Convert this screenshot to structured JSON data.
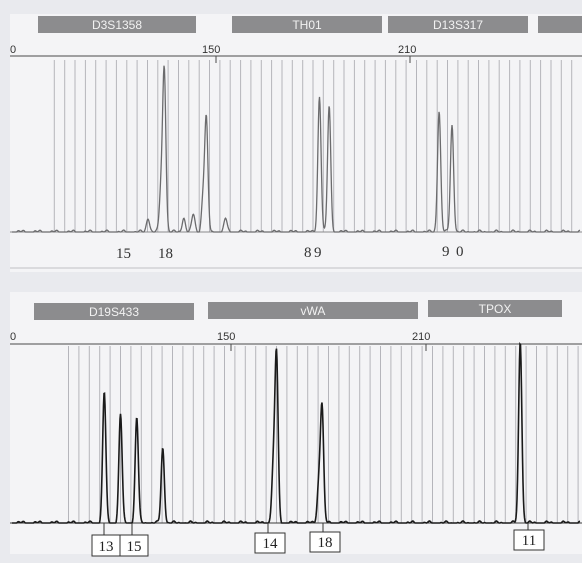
{
  "colors": {
    "background": "#e9eaee",
    "panel": "#f4f4f6",
    "marker_box": "#8c8c8e",
    "marker_text": "#f2f2f2",
    "trace_top": "#6b6b6d",
    "trace_bottom": "#1a1a1a",
    "bin_line": "#b5b5bb",
    "axis": "#4a4a4a"
  },
  "panels": [
    {
      "id": "top",
      "markers": [
        "D3S1358",
        "TH01",
        "D13S317"
      ],
      "axis_ticks": [
        "0",
        "150",
        "210"
      ],
      "allele_labels": [
        "15",
        "18",
        "8",
        "9",
        "9",
        "0"
      ]
    },
    {
      "id": "bottom",
      "markers": [
        "D19S433",
        "vWA",
        "TPOX"
      ],
      "axis_ticks": [
        "0",
        "150",
        "210"
      ],
      "allele_labels": [
        "13",
        "15",
        "14",
        "18",
        "11"
      ]
    }
  ],
  "chart_data": [
    {
      "type": "line",
      "title": "",
      "xlabel": "",
      "ylabel": "",
      "x_ticks": [
        150,
        210
      ],
      "grid": true,
      "markers": [
        "D3S1358",
        "TH01",
        "D13S317"
      ],
      "allele_calls": [
        {
          "marker": "D3S1358",
          "alleles": [
            "15",
            "18"
          ]
        },
        {
          "marker": "TH01",
          "alleles": [
            "8",
            "9"
          ]
        },
        {
          "marker": "D13S317",
          "alleles": [
            "9",
            "0"
          ]
        }
      ],
      "peaks": [
        {
          "x": 129,
          "rel_height": 0.09
        },
        {
          "x": 133,
          "rel_height": 0.26
        },
        {
          "x": 134,
          "rel_height": 1.0
        },
        {
          "x": 140,
          "rel_height": 0.09
        },
        {
          "x": 143,
          "rel_height": 0.11
        },
        {
          "x": 146,
          "rel_height": 0.2
        },
        {
          "x": 147,
          "rel_height": 0.69
        },
        {
          "x": 153,
          "rel_height": 0.08
        },
        {
          "x": 182,
          "rel_height": 0.84
        },
        {
          "x": 185,
          "rel_height": 0.77
        },
        {
          "x": 219,
          "rel_height": 0.75
        },
        {
          "x": 223,
          "rel_height": 0.66
        }
      ]
    },
    {
      "type": "line",
      "title": "",
      "xlabel": "",
      "ylabel": "",
      "x_ticks": [
        150,
        210
      ],
      "grid": true,
      "markers": [
        "D19S433",
        "vWA",
        "TPOX"
      ],
      "allele_calls": [
        {
          "marker": "D19S433",
          "alleles": [
            "13",
            "15"
          ]
        },
        {
          "marker": "vWA",
          "alleles": [
            "14",
            "18"
          ]
        },
        {
          "marker": "TPOX",
          "alleles": [
            "11"
          ]
        }
      ],
      "peaks": [
        {
          "x": 111,
          "rel_height": 0.72
        },
        {
          "x": 116,
          "rel_height": 0.6
        },
        {
          "x": 121,
          "rel_height": 0.58
        },
        {
          "x": 129,
          "rel_height": 0.41
        },
        {
          "x": 164,
          "rel_height": 0.92
        },
        {
          "x": 163,
          "rel_height": 0.28
        },
        {
          "x": 178,
          "rel_height": 0.64
        },
        {
          "x": 177,
          "rel_height": 0.2
        },
        {
          "x": 239,
          "rel_height": 1.0
        }
      ]
    }
  ]
}
